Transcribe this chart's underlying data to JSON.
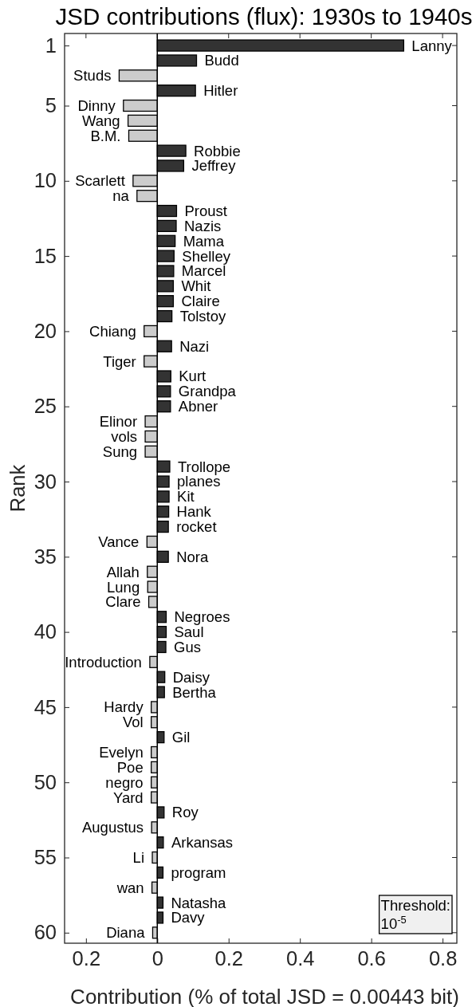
{
  "chart_data": {
    "type": "bar",
    "orientation": "horizontal",
    "title": "JSD contributions (flux): 1930s to 1940s",
    "xlabel": "Contribution (% of total JSD = 0.00443 bit)",
    "ylabel": "Rank",
    "x": [
      1,
      2,
      3,
      4,
      5,
      6,
      7,
      8,
      9,
      10,
      11,
      12,
      13,
      14,
      15,
      16,
      17,
      18,
      19,
      20,
      21,
      22,
      23,
      24,
      25,
      26,
      27,
      28,
      29,
      30,
      31,
      32,
      33,
      34,
      35,
      36,
      37,
      38,
      39,
      40,
      41,
      42,
      43,
      44,
      45,
      46,
      47,
      48,
      49,
      50,
      51,
      52,
      53,
      54,
      55,
      56,
      57,
      58,
      59,
      60
    ],
    "values": [
      0.691,
      0.11,
      -0.107,
      0.107,
      -0.095,
      -0.082,
      -0.08,
      0.08,
      0.074,
      -0.068,
      -0.057,
      0.054,
      0.053,
      0.05,
      0.047,
      0.046,
      0.045,
      0.045,
      0.041,
      -0.037,
      0.04,
      -0.037,
      0.038,
      0.037,
      0.037,
      -0.034,
      -0.034,
      -0.034,
      0.035,
      0.033,
      0.033,
      0.032,
      0.031,
      -0.029,
      0.031,
      -0.028,
      -0.027,
      -0.024,
      0.025,
      0.025,
      0.024,
      -0.021,
      0.021,
      0.02,
      -0.017,
      -0.017,
      0.019,
      -0.017,
      -0.017,
      -0.017,
      -0.017,
      0.019,
      -0.016,
      0.017,
      -0.014,
      0.016,
      -0.015,
      0.016,
      0.016,
      -0.013
    ],
    "colors": [
      "#333333",
      "#333333",
      "#cccccc",
      "#333333",
      "#cccccc",
      "#cccccc",
      "#cccccc",
      "#333333",
      "#333333",
      "#cccccc",
      "#cccccc",
      "#333333",
      "#333333",
      "#333333",
      "#333333",
      "#333333",
      "#333333",
      "#333333",
      "#333333",
      "#cccccc",
      "#333333",
      "#cccccc",
      "#333333",
      "#333333",
      "#333333",
      "#cccccc",
      "#cccccc",
      "#cccccc",
      "#333333",
      "#333333",
      "#333333",
      "#333333",
      "#333333",
      "#cccccc",
      "#333333",
      "#cccccc",
      "#cccccc",
      "#cccccc",
      "#333333",
      "#333333",
      "#333333",
      "#cccccc",
      "#333333",
      "#333333",
      "#cccccc",
      "#cccccc",
      "#333333",
      "#cccccc",
      "#cccccc",
      "#cccccc",
      "#cccccc",
      "#333333",
      "#cccccc",
      "#333333",
      "#cccccc",
      "#333333",
      "#cccccc",
      "#333333",
      "#333333",
      "#cccccc"
    ],
    "xlim": [
      -0.26,
      0.84
    ],
    "xticks": [
      {
        "value": -0.2,
        "label": "0.2"
      },
      0,
      0.2,
      0.4,
      0.6,
      0.8
    ],
    "ylim": [
      60.7,
      0.2
    ],
    "yticks": [
      1,
      5,
      10,
      15,
      20,
      25,
      30,
      35,
      40,
      45,
      50,
      55,
      60
    ],
    "annotations": [
      {
        "text": "Lanny",
        "x": 0.691,
        "y": 1
      },
      {
        "text": "Budd",
        "x": 0.11,
        "y": 2
      },
      {
        "text": "Studs",
        "x": -0.107,
        "y": 3
      },
      {
        "text": "Hitler",
        "x": 0.107,
        "y": 4
      },
      {
        "text": "Dinny",
        "x": -0.095,
        "y": 5
      },
      {
        "text": "Wang",
        "x": -0.082,
        "y": 6
      },
      {
        "text": "B.M.",
        "x": -0.08,
        "y": 7
      },
      {
        "text": "Robbie",
        "x": 0.08,
        "y": 8
      },
      {
        "text": "Jeffrey",
        "x": 0.074,
        "y": 9
      },
      {
        "text": "Scarlett",
        "x": -0.068,
        "y": 10
      },
      {
        "text": "na",
        "x": -0.057,
        "y": 11
      },
      {
        "text": "Proust",
        "x": 0.054,
        "y": 12
      },
      {
        "text": "Nazis",
        "x": 0.053,
        "y": 13
      },
      {
        "text": "Mama",
        "x": 0.05,
        "y": 14
      },
      {
        "text": "Shelley",
        "x": 0.047,
        "y": 15
      },
      {
        "text": "Marcel",
        "x": 0.046,
        "y": 16
      },
      {
        "text": "Whit",
        "x": 0.045,
        "y": 17
      },
      {
        "text": "Claire",
        "x": 0.045,
        "y": 18
      },
      {
        "text": "Tolstoy",
        "x": 0.041,
        "y": 19
      },
      {
        "text": "Chiang",
        "x": -0.037,
        "y": 20
      },
      {
        "text": "Nazi",
        "x": 0.04,
        "y": 21
      },
      {
        "text": "Tiger",
        "x": -0.037,
        "y": 22
      },
      {
        "text": "Kurt",
        "x": 0.038,
        "y": 23
      },
      {
        "text": "Grandpa",
        "x": 0.037,
        "y": 24
      },
      {
        "text": "Abner",
        "x": 0.037,
        "y": 25
      },
      {
        "text": "Elinor",
        "x": -0.034,
        "y": 26
      },
      {
        "text": "vols",
        "x": -0.034,
        "y": 27
      },
      {
        "text": "Sung",
        "x": -0.034,
        "y": 28
      },
      {
        "text": "Trollope",
        "x": 0.035,
        "y": 29
      },
      {
        "text": "planes",
        "x": 0.033,
        "y": 30
      },
      {
        "text": "Kit",
        "x": 0.033,
        "y": 31
      },
      {
        "text": "Hank",
        "x": 0.032,
        "y": 32
      },
      {
        "text": "rocket",
        "x": 0.031,
        "y": 33
      },
      {
        "text": "Vance",
        "x": -0.029,
        "y": 34
      },
      {
        "text": "Nora",
        "x": 0.031,
        "y": 35
      },
      {
        "text": "Allah",
        "x": -0.028,
        "y": 36
      },
      {
        "text": "Lung",
        "x": -0.027,
        "y": 37
      },
      {
        "text": "Clare",
        "x": -0.024,
        "y": 38
      },
      {
        "text": "Negroes",
        "x": 0.025,
        "y": 39
      },
      {
        "text": "Saul",
        "x": 0.025,
        "y": 40
      },
      {
        "text": "Gus",
        "x": 0.024,
        "y": 41
      },
      {
        "text": "Introduction",
        "x": -0.021,
        "y": 42
      },
      {
        "text": "Daisy",
        "x": 0.021,
        "y": 43
      },
      {
        "text": "Bertha",
        "x": 0.02,
        "y": 44
      },
      {
        "text": "Hardy",
        "x": -0.017,
        "y": 45
      },
      {
        "text": "Vol",
        "x": -0.017,
        "y": 46
      },
      {
        "text": "Gil",
        "x": 0.019,
        "y": 47
      },
      {
        "text": "Evelyn",
        "x": -0.017,
        "y": 48
      },
      {
        "text": "Poe",
        "x": -0.017,
        "y": 49
      },
      {
        "text": "negro",
        "x": -0.017,
        "y": 50
      },
      {
        "text": "Yard",
        "x": -0.017,
        "y": 51
      },
      {
        "text": "Roy",
        "x": 0.019,
        "y": 52
      },
      {
        "text": "Augustus",
        "x": -0.016,
        "y": 53
      },
      {
        "text": "Arkansas",
        "x": 0.017,
        "y": 54
      },
      {
        "text": "Li",
        "x": -0.014,
        "y": 55
      },
      {
        "text": "program",
        "x": 0.016,
        "y": 56
      },
      {
        "text": "wan",
        "x": -0.015,
        "y": 57
      },
      {
        "text": "Natasha",
        "x": 0.016,
        "y": 58
      },
      {
        "text": "Davy",
        "x": 0.016,
        "y": 59
      },
      {
        "text": "Diana",
        "x": -0.013,
        "y": 60
      },
      "Threshold:\n10$^{-5}$"
    ]
  }
}
